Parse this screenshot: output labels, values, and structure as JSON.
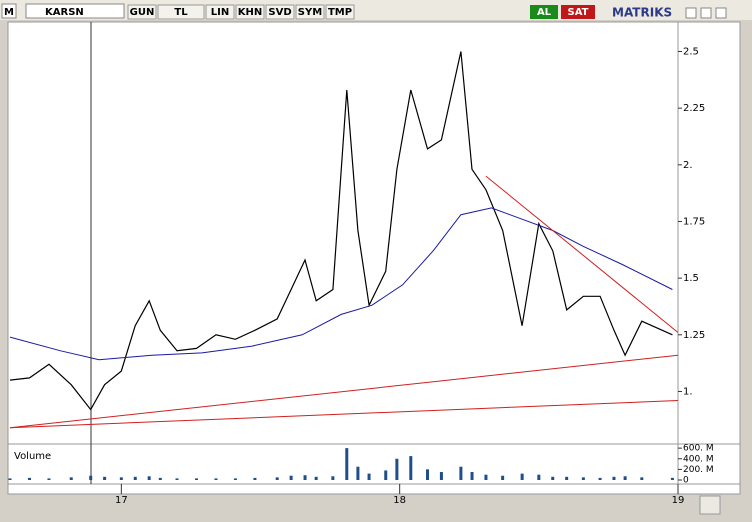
{
  "toolbar": {
    "menu": "M",
    "symbol": "KARSN",
    "buttons": [
      "GUN",
      "TL",
      "LIN",
      "KHN",
      "SVD",
      "SYM",
      "TMP"
    ],
    "buy": "AL",
    "sell": "SAT",
    "brand": "MATRIKS"
  },
  "chart_data": {
    "type": "line",
    "xlim": [
      16.6,
      19.0
    ],
    "xticks": [
      17,
      18,
      19
    ],
    "ylim": [
      0.83,
      2.63
    ],
    "yticks": [
      {
        "value": 1,
        "label": "1."
      },
      1.25,
      1.5,
      1.75,
      {
        "value": 2,
        "label": "2."
      },
      2.25,
      2.5
    ],
    "series": [
      {
        "color": "#000000",
        "x": [
          16.6,
          16.67,
          16.74,
          16.82,
          16.89,
          16.94,
          17.0,
          17.05,
          17.1,
          17.14,
          17.2,
          17.27,
          17.34,
          17.41,
          17.48,
          17.56,
          17.61,
          17.66,
          17.7,
          17.76,
          17.81,
          17.85,
          17.89,
          17.95,
          17.99,
          18.04,
          18.1,
          18.15,
          18.22,
          18.26,
          18.31,
          18.37,
          18.44,
          18.5,
          18.55,
          18.6,
          18.66,
          18.72,
          18.77,
          18.81,
          18.87,
          18.98
        ],
        "values": [
          1.05,
          1.06,
          1.12,
          1.03,
          0.92,
          1.03,
          1.09,
          1.29,
          1.4,
          1.27,
          1.18,
          1.19,
          1.25,
          1.23,
          1.27,
          1.32,
          1.45,
          1.58,
          1.4,
          1.45,
          2.33,
          1.71,
          1.38,
          1.53,
          1.98,
          2.33,
          2.07,
          2.11,
          2.5,
          1.98,
          1.89,
          1.71,
          1.29,
          1.74,
          1.62,
          1.36,
          1.42,
          1.42,
          1.27,
          1.16,
          1.31,
          1.25
        ]
      },
      {
        "color": "#1a1aa0",
        "x": [
          16.6,
          16.78,
          16.92,
          17.11,
          17.29,
          17.47,
          17.65,
          17.79,
          17.9,
          18.01,
          18.12,
          18.22,
          18.33,
          18.44,
          18.55,
          18.66,
          18.8,
          18.98
        ],
        "values": [
          1.24,
          1.18,
          1.14,
          1.16,
          1.17,
          1.2,
          1.25,
          1.34,
          1.38,
          1.47,
          1.62,
          1.78,
          1.81,
          1.76,
          1.71,
          1.64,
          1.56,
          1.45
        ]
      },
      {
        "color": "#d02020",
        "x": [
          16.6,
          19.0
        ],
        "values": [
          0.84,
          1.16
        ]
      },
      {
        "color": "#d02020",
        "x": [
          16.6,
          19.0
        ],
        "values": [
          0.84,
          0.96
        ]
      },
      {
        "color": "#d02020",
        "x": [
          18.31,
          19.0
        ],
        "values": [
          1.95,
          1.26
        ]
      }
    ],
    "volume": {
      "label": "Volume",
      "color": "#1f4e8c",
      "ylim": [
        0,
        640
      ],
      "yticks": [
        {
          "value": 0,
          "label": "0"
        },
        {
          "value": 200,
          "label": "200. M"
        },
        {
          "value": 400,
          "label": "400. M"
        },
        {
          "value": 600,
          "label": "600. M"
        }
      ],
      "values": [
        30,
        40,
        30,
        50,
        80,
        60,
        50,
        60,
        70,
        40,
        30,
        30,
        30,
        30,
        40,
        50,
        80,
        90,
        60,
        70,
        600,
        250,
        120,
        180,
        400,
        450,
        200,
        150,
        250,
        150,
        100,
        80,
        120,
        100,
        60,
        60,
        50,
        40,
        60,
        70,
        50,
        40
      ]
    }
  }
}
